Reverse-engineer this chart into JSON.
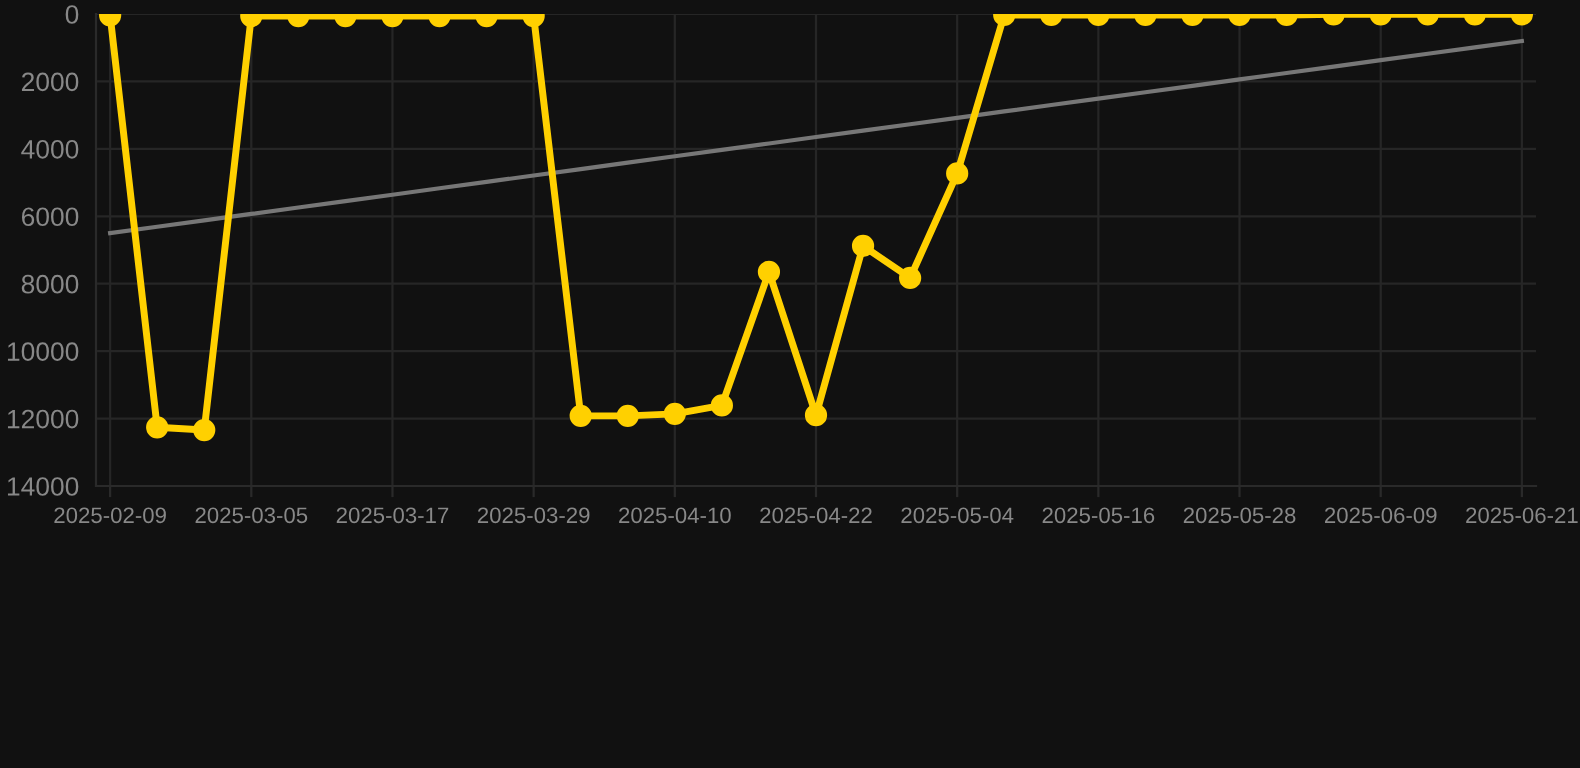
{
  "chart_data": {
    "type": "line",
    "categories": [
      "2025-02-09",
      null,
      null,
      "2025-03-05",
      null,
      null,
      "2025-03-17",
      null,
      null,
      "2025-03-29",
      null,
      null,
      "2025-04-10",
      null,
      null,
      "2025-04-22",
      null,
      null,
      "2025-05-04",
      null,
      null,
      "2025-05-16",
      null,
      null,
      "2025-05-28",
      null,
      null,
      "2025-06-09",
      null,
      null,
      "2025-06-21"
    ],
    "series": [
      {
        "color": "#ffd000",
        "marker": "circle",
        "values": [
          40,
          12260,
          12340,
          60,
          60,
          60,
          60,
          60,
          60,
          60,
          11920,
          11920,
          11860,
          11610,
          7650,
          11900,
          6880,
          7830,
          4730,
          30,
          30,
          30,
          30,
          30,
          30,
          30,
          10,
          10,
          10,
          10,
          10
        ]
      },
      {
        "color": "#777777",
        "marker": "none",
        "values": [
          6500,
          6310,
          6120,
          5930,
          5740,
          5550,
          5360,
          5170,
          4980,
          4790,
          4600,
          4410,
          4220,
          4030,
          3840,
          3650,
          3460,
          3270,
          3080,
          2890,
          2700,
          2510,
          2320,
          2130,
          1940,
          1750,
          1560,
          1370,
          1180,
          990,
          800
        ]
      }
    ],
    "ylim": [
      14000,
      0
    ],
    "yticks": [
      0,
      2000,
      4000,
      6000,
      8000,
      10000,
      12000,
      14000
    ],
    "grid": true
  }
}
